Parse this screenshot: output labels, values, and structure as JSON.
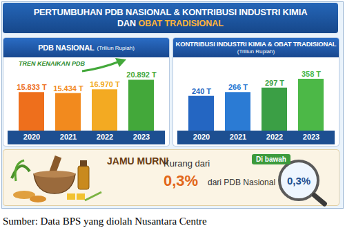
{
  "title": [
    "PERTUMBUHAN PDB NASIONAL & KONTRIBUSI INDUSTRI KIMIA",
    "DAN",
    "OBAT TRADISIONAL"
  ],
  "chart_data": [
    {
      "type": "bar",
      "title": "PDB NASIONAL",
      "subtitle": "(Triliun Rupiah)",
      "annotation": "TREN KENAIKAN PDB",
      "categories": [
        "2020",
        "2021",
        "2022",
        "2023"
      ],
      "values": [
        15833,
        15434,
        16970,
        20892
      ],
      "value_labels": [
        "15.833 T",
        "15.434 T",
        "16.970 T",
        "20.892 T"
      ],
      "colors": [
        "#ee6f1c",
        "#f28a1e",
        "#f3aa22",
        "#43a83a"
      ],
      "ylim": [
        0,
        25000
      ],
      "data_labels": true,
      "tick_labels": "x"
    },
    {
      "type": "bar",
      "title": "KONTRIBUSI INDUSTRI KIMIA & OBAT TRADISIONAL",
      "subtitle": "(Triliun Rupiah)",
      "categories": [
        "2020",
        "2021",
        "2022",
        "2023"
      ],
      "values": [
        240,
        266,
        297,
        358
      ],
      "value_labels": [
        "240 T",
        "266 T",
        "297 T",
        "358 T"
      ],
      "colors": [
        "#2466c2",
        "#2b7bd4",
        "#3b9f45",
        "#4cb847"
      ],
      "ylim": [
        0,
        420
      ],
      "data_labels": true,
      "tick_labels": "x"
    }
  ],
  "jamu_panel": {
    "label": "JAMU MURNI",
    "text_1": "Kurang dari",
    "value": "0,3%",
    "text_2": "dari PDB Nasional",
    "badge": "Di bawah",
    "badge_value": "0,3%"
  },
  "source": "Sumber: Data BPS yang diolah Nusantara Centre"
}
